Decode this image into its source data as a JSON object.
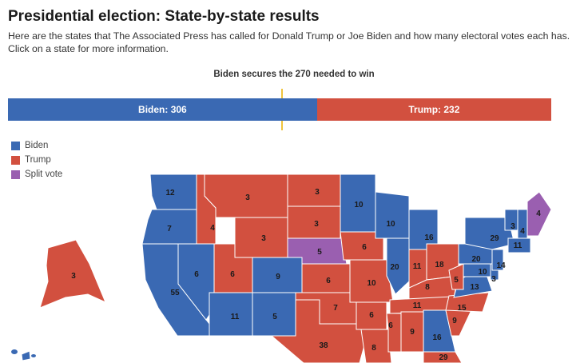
{
  "header": {
    "title": "Presidential election: State-by-state results",
    "subtitle": "Here are the states that The Associated Press has called for Donald Trump or Joe Biden and how many electoral votes each has. Click on a state for more information."
  },
  "tally": {
    "threshold_label": "Biden secures the 270 needed to win",
    "total_electoral_votes": 538,
    "threshold": 270,
    "biden": {
      "label": "Biden: 306",
      "value": 306,
      "color": "#3a69b3"
    },
    "trump": {
      "label": "Trump: 232",
      "value": 232,
      "color": "#d2503f"
    }
  },
  "legend": [
    {
      "label": "Biden",
      "color": "#3a69b3"
    },
    {
      "label": "Trump",
      "color": "#d2503f"
    },
    {
      "label": "Split vote",
      "color": "#9a5fb0"
    }
  ],
  "colors": {
    "biden": "#3a69b3",
    "trump": "#d2503f",
    "split": "#9a5fb0"
  },
  "states": [
    {
      "name": "Washington",
      "ev": "12",
      "winner": "biden"
    },
    {
      "name": "Oregon",
      "ev": "7",
      "winner": "biden"
    },
    {
      "name": "California",
      "ev": "55",
      "winner": "biden"
    },
    {
      "name": "Nevada",
      "ev": "6",
      "winner": "biden"
    },
    {
      "name": "Idaho",
      "ev": "4",
      "winner": "trump"
    },
    {
      "name": "Montana",
      "ev": "3",
      "winner": "trump"
    },
    {
      "name": "Wyoming",
      "ev": "3",
      "winner": "trump"
    },
    {
      "name": "Utah",
      "ev": "6",
      "winner": "trump"
    },
    {
      "name": "Colorado",
      "ev": "9",
      "winner": "biden"
    },
    {
      "name": "Arizona",
      "ev": "11",
      "winner": "biden"
    },
    {
      "name": "New Mexico",
      "ev": "5",
      "winner": "biden"
    },
    {
      "name": "North Dakota",
      "ev": "3",
      "winner": "trump"
    },
    {
      "name": "South Dakota",
      "ev": "3",
      "winner": "trump"
    },
    {
      "name": "Nebraska",
      "ev": "5",
      "winner": "split"
    },
    {
      "name": "Kansas",
      "ev": "6",
      "winner": "trump"
    },
    {
      "name": "Oklahoma",
      "ev": "7",
      "winner": "trump"
    },
    {
      "name": "Texas",
      "ev": "38",
      "winner": "trump"
    },
    {
      "name": "Minnesota",
      "ev": "10",
      "winner": "biden"
    },
    {
      "name": "Iowa",
      "ev": "6",
      "winner": "trump"
    },
    {
      "name": "Missouri",
      "ev": "10",
      "winner": "trump"
    },
    {
      "name": "Arkansas",
      "ev": "6",
      "winner": "trump"
    },
    {
      "name": "Louisiana",
      "ev": "8",
      "winner": "trump"
    },
    {
      "name": "Wisconsin",
      "ev": "10",
      "winner": "biden"
    },
    {
      "name": "Illinois",
      "ev": "20",
      "winner": "biden"
    },
    {
      "name": "Michigan",
      "ev": "16",
      "winner": "biden"
    },
    {
      "name": "Indiana",
      "ev": "11",
      "winner": "trump"
    },
    {
      "name": "Ohio",
      "ev": "18",
      "winner": "trump"
    },
    {
      "name": "Kentucky",
      "ev": "8",
      "winner": "trump"
    },
    {
      "name": "Tennessee",
      "ev": "11",
      "winner": "trump"
    },
    {
      "name": "Mississippi",
      "ev": "6",
      "winner": "trump"
    },
    {
      "name": "Alabama",
      "ev": "9",
      "winner": "trump"
    },
    {
      "name": "Georgia",
      "ev": "16",
      "winner": "biden"
    },
    {
      "name": "Florida",
      "ev": "29",
      "winner": "trump"
    },
    {
      "name": "South Carolina",
      "ev": "9",
      "winner": "trump"
    },
    {
      "name": "North Carolina",
      "ev": "15",
      "winner": "trump"
    },
    {
      "name": "Virginia",
      "ev": "13",
      "winner": "biden"
    },
    {
      "name": "West Virginia",
      "ev": "5",
      "winner": "trump"
    },
    {
      "name": "Maryland",
      "ev": "10",
      "winner": "biden"
    },
    {
      "name": "Delaware",
      "ev": "3",
      "winner": "biden"
    },
    {
      "name": "New Jersey",
      "ev": "14",
      "winner": "biden"
    },
    {
      "name": "Pennsylvania",
      "ev": "20",
      "winner": "biden"
    },
    {
      "name": "New York",
      "ev": "29",
      "winner": "biden"
    },
    {
      "name": "Vermont",
      "ev": "3",
      "winner": "biden"
    },
    {
      "name": "New Hampshire",
      "ev": "4",
      "winner": "biden"
    },
    {
      "name": "Massachusetts",
      "ev": "11",
      "winner": "biden"
    },
    {
      "name": "Maine",
      "ev": "4",
      "winner": "split"
    },
    {
      "name": "Alaska",
      "ev": "3",
      "winner": "trump"
    },
    {
      "name": "Hawaii",
      "ev": "",
      "winner": "biden"
    }
  ]
}
